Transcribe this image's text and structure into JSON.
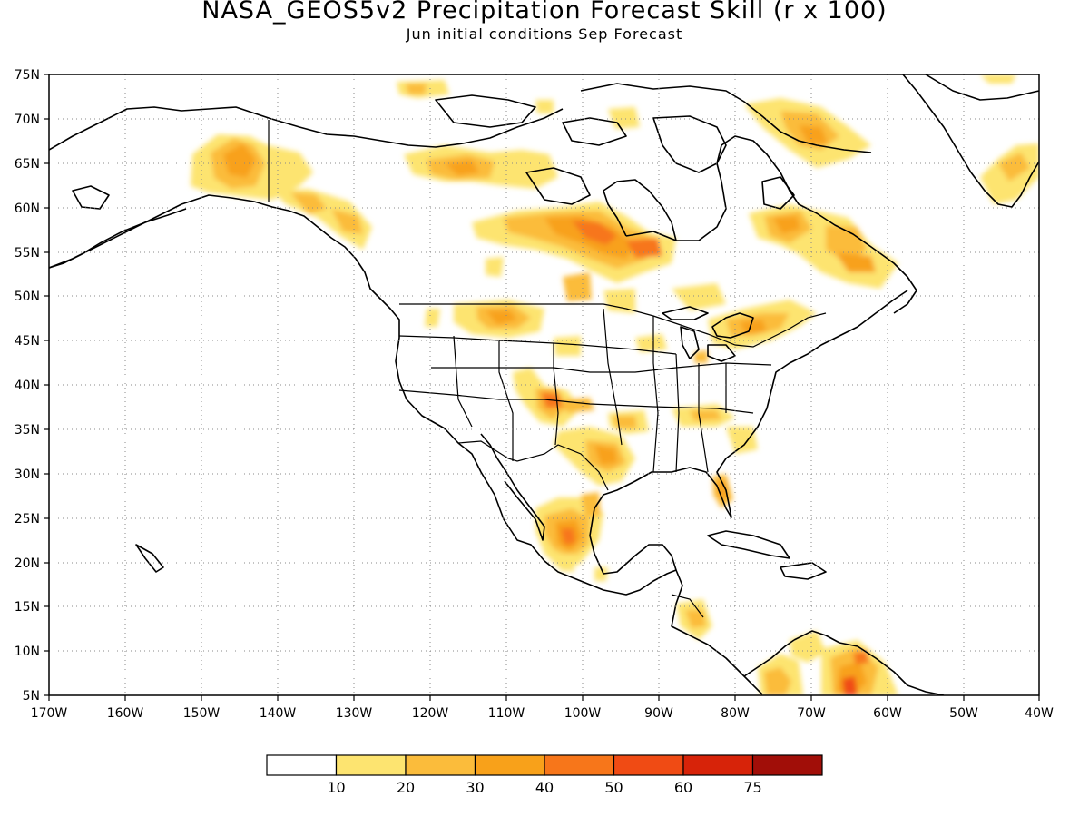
{
  "title": "NASA_GEOS5v2 Precipitation Forecast Skill (r x 100)",
  "subtitle": "Jun initial conditions  Sep Forecast",
  "axes": {
    "lon_labels": [
      "170W",
      "160W",
      "150W",
      "140W",
      "130W",
      "120W",
      "110W",
      "100W",
      "90W",
      "80W",
      "70W",
      "60W",
      "50W",
      "40W"
    ],
    "lat_labels": [
      "75N",
      "70N",
      "65N",
      "60N",
      "55N",
      "50N",
      "45N",
      "40N",
      "35N",
      "30N",
      "25N",
      "20N",
      "15N",
      "10N",
      "5N"
    ],
    "lon_range": [
      -170,
      -40
    ],
    "lat_range": [
      5,
      75
    ],
    "grid": "dotted, every 10° longitude and 5° latitude"
  },
  "colorbar": {
    "colors": [
      "#ffffff",
      "#fde470",
      "#fbbc3b",
      "#f8a11a",
      "#f7761a",
      "#f04b14",
      "#d72309",
      "#a10e08"
    ],
    "labels": [
      "10",
      "20",
      "30",
      "40",
      "50",
      "60",
      "75"
    ]
  },
  "skill_regions": [
    {
      "region": "Alaska interior",
      "level": 3
    },
    {
      "region": "Northwest Territories",
      "level": 3
    },
    {
      "region": "Manitoba / Hudson Bay",
      "level": 4
    },
    {
      "region": "Northern Quebec",
      "level": 3
    },
    {
      "region": "Montana",
      "level": 3
    },
    {
      "region": "Oklahoma / Texas panhandle",
      "level": 3
    },
    {
      "region": "Northeast Mexico",
      "level": 4
    },
    {
      "region": "Great Lakes / Ontario",
      "level": 3
    },
    {
      "region": "Central America",
      "level": 2
    },
    {
      "region": "Northern South America",
      "level": 4
    },
    {
      "region": "Greenland southwest",
      "level": 2
    },
    {
      "region": "Florida",
      "level": 3
    }
  ]
}
